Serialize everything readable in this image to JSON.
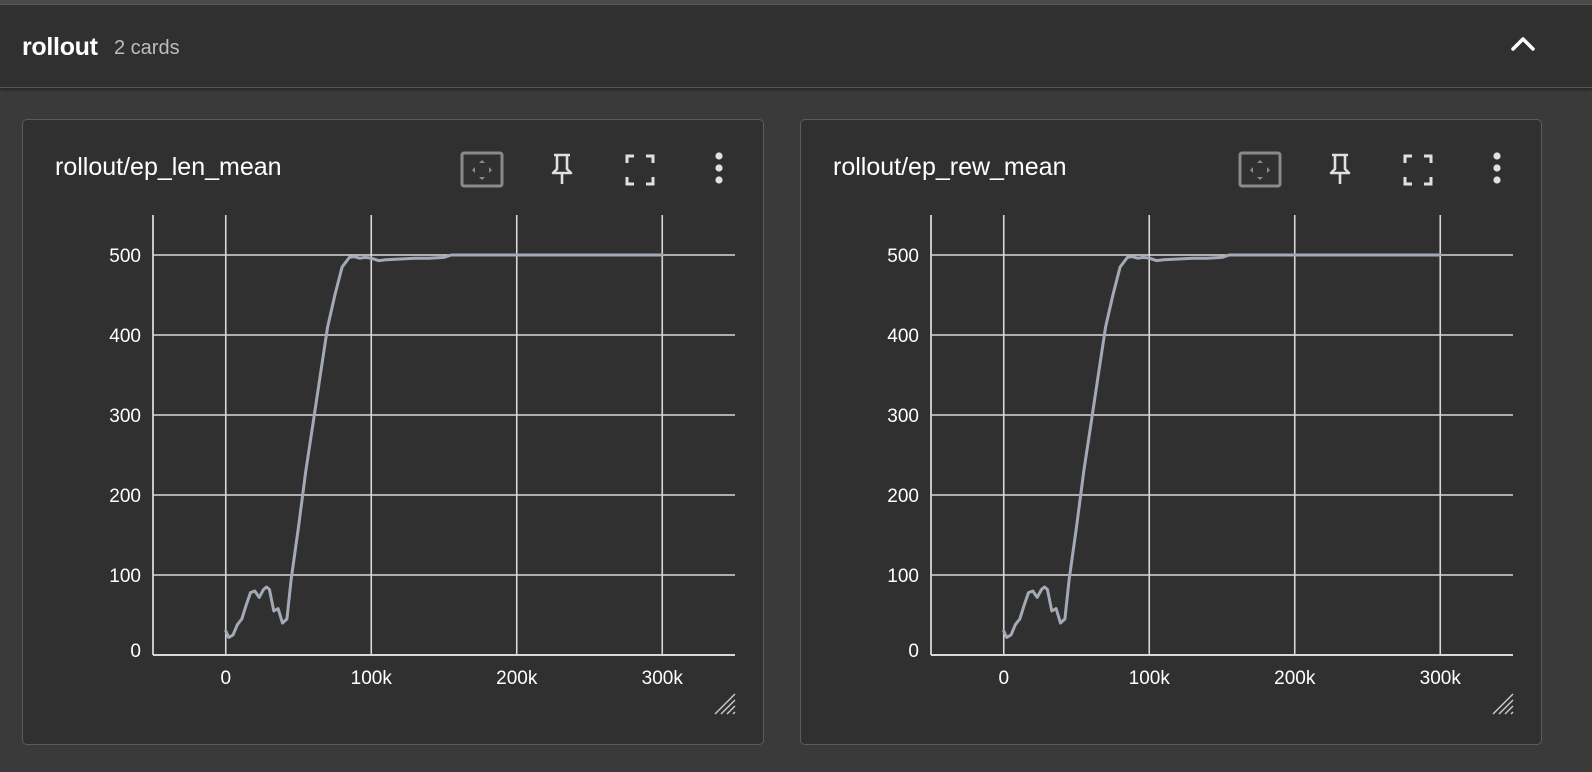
{
  "group": {
    "title": "rollout",
    "count_label": "2 cards"
  },
  "icons": {
    "collapse": "chevron-up-icon",
    "fit": "fit-domain-icon",
    "pin": "pin-icon",
    "fullscreen": "fullscreen-icon",
    "menu": "more-vert-icon",
    "resize": "resize-handle-icon"
  },
  "colors": {
    "line": "#a3aab5",
    "grid": "#d8d8d8",
    "background": "#303030"
  },
  "cards": [
    {
      "title": "rollout/ep_len_mean"
    },
    {
      "title": "rollout/ep_rew_mean"
    }
  ],
  "chart_data": [
    {
      "type": "line",
      "title": "rollout/ep_len_mean",
      "xlim": [
        -50000,
        350000
      ],
      "ylim": [
        0,
        550
      ],
      "x_ticks": [
        0,
        100000,
        200000,
        300000
      ],
      "x_tick_labels": [
        "0",
        "100k",
        "200k",
        "300k"
      ],
      "y_ticks": [
        0,
        100,
        200,
        300,
        400,
        500
      ],
      "y_tick_labels": [
        "0",
        "100",
        "200",
        "300",
        "400",
        "500"
      ],
      "grid": true,
      "series": [
        {
          "x": [
            0,
            2000,
            5000,
            8000,
            11000,
            14000,
            17000,
            20000,
            23000,
            26000,
            28000,
            30000,
            33000,
            36000,
            39000,
            42000,
            45000,
            50000,
            55000,
            60000,
            65000,
            70000,
            75000,
            80000,
            85000,
            88000,
            92000,
            96000,
            100000,
            105000,
            110000,
            120000,
            130000,
            140000,
            150000,
            155000,
            200000,
            250000,
            300000
          ],
          "y": [
            30,
            22,
            25,
            38,
            45,
            62,
            78,
            80,
            72,
            82,
            85,
            82,
            55,
            58,
            40,
            45,
            95,
            160,
            230,
            290,
            350,
            410,
            450,
            485,
            497,
            498,
            496,
            497,
            496,
            493,
            494,
            495,
            496,
            496,
            497,
            500,
            500,
            500,
            500
          ]
        }
      ]
    },
    {
      "type": "line",
      "title": "rollout/ep_rew_mean",
      "xlim": [
        -50000,
        350000
      ],
      "ylim": [
        0,
        550
      ],
      "x_ticks": [
        0,
        100000,
        200000,
        300000
      ],
      "x_tick_labels": [
        "0",
        "100k",
        "200k",
        "300k"
      ],
      "y_ticks": [
        0,
        100,
        200,
        300,
        400,
        500
      ],
      "y_tick_labels": [
        "0",
        "100",
        "200",
        "300",
        "400",
        "500"
      ],
      "grid": true,
      "series": [
        {
          "x": [
            0,
            2000,
            5000,
            8000,
            11000,
            14000,
            17000,
            20000,
            23000,
            26000,
            28000,
            30000,
            33000,
            36000,
            39000,
            42000,
            45000,
            50000,
            55000,
            60000,
            65000,
            70000,
            75000,
            80000,
            85000,
            88000,
            92000,
            96000,
            100000,
            105000,
            110000,
            120000,
            130000,
            140000,
            150000,
            155000,
            200000,
            250000,
            300000
          ],
          "y": [
            30,
            22,
            25,
            38,
            45,
            62,
            78,
            80,
            72,
            82,
            85,
            82,
            55,
            58,
            40,
            45,
            95,
            160,
            230,
            290,
            350,
            410,
            450,
            485,
            497,
            498,
            496,
            497,
            496,
            493,
            494,
            495,
            496,
            496,
            497,
            500,
            500,
            500,
            500
          ]
        }
      ]
    }
  ]
}
